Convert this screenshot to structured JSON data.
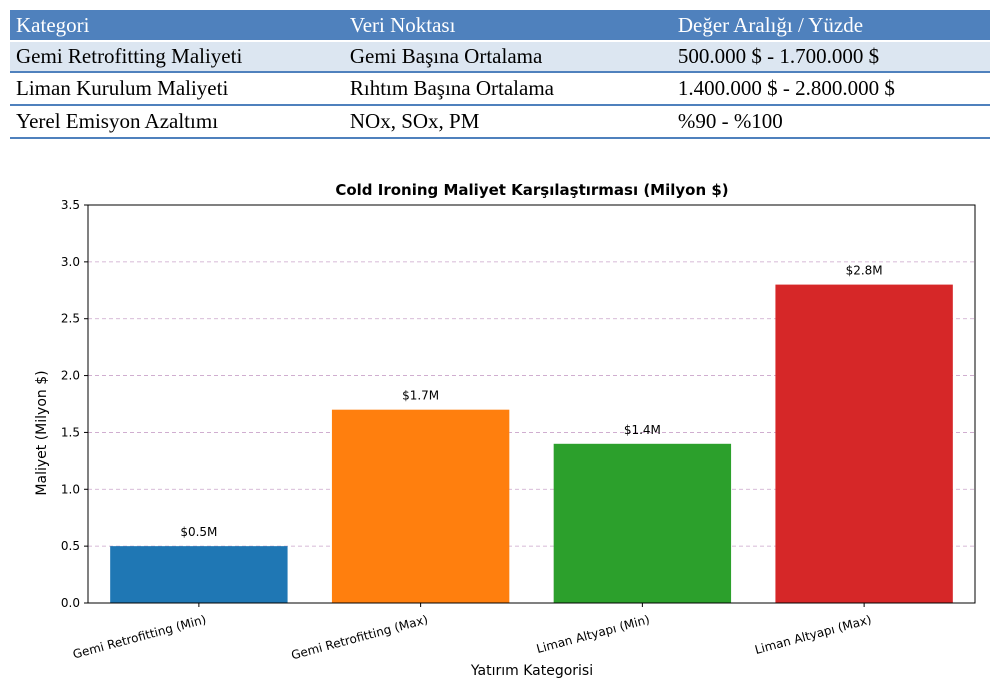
{
  "table": {
    "headers": [
      "Kategori",
      "Veri Noktası",
      "Değer Aralığı / Yüzde"
    ],
    "rows": [
      [
        "Gemi Retrofitting Maliyeti",
        "Gemi Başına Ortalama",
        "500.000 $ - 1.700.000 $"
      ],
      [
        "Liman Kurulum Maliyeti",
        "Rıhtım Başına Ortalama",
        "1.400.000 $ - 2.800.000 $"
      ],
      [
        "Yerel Emisyon Azaltımı",
        "NOx, SOx, PM",
        "%90 - %100"
      ]
    ]
  },
  "chart_data": {
    "type": "bar",
    "title": "Cold Ironing Maliyet Karşılaştırması (Milyon $)",
    "xlabel": "Yatırım Kategorisi",
    "ylabel": "Maliyet (Milyon $)",
    "categories": [
      "Gemi Retrofitting (Min)",
      "Gemi Retrofitting (Max)",
      "Liman Altyapı (Min)",
      "Liman Altyapı (Max)"
    ],
    "values": [
      0.5,
      1.7,
      1.4,
      2.8
    ],
    "data_labels": [
      "$0.5M",
      "$1.7M",
      "$1.4M",
      "$2.8M"
    ],
    "colors": [
      "#1f77b4",
      "#ff7f0e",
      "#2ca02c",
      "#d62728"
    ],
    "ylim": [
      0,
      3.5
    ],
    "yticks": [
      "0.0",
      "0.5",
      "1.0",
      "1.5",
      "2.0",
      "2.5",
      "3.0",
      "3.5"
    ],
    "grid": "horizontal dashed"
  }
}
